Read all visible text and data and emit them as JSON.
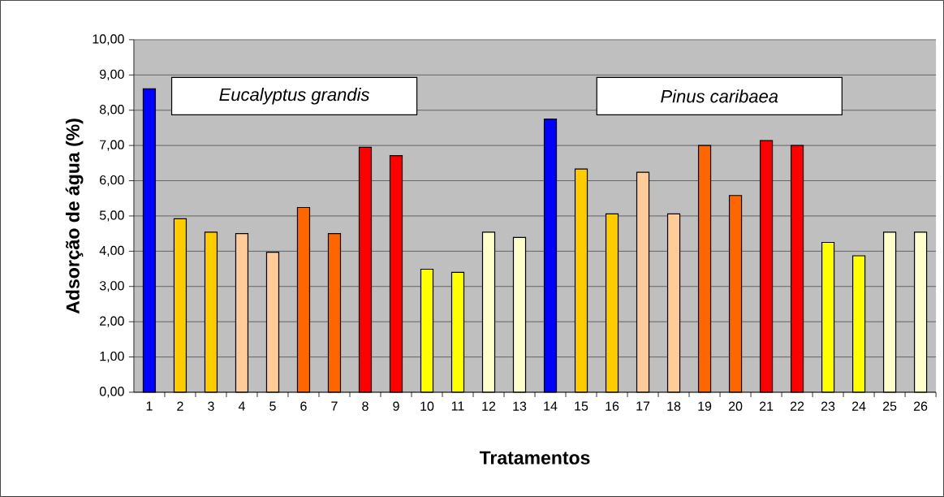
{
  "chart_data": {
    "type": "bar",
    "xlabel": "Tratamentos",
    "ylabel": "Adsorção de água (%)",
    "categories": [
      "1",
      "2",
      "3",
      "4",
      "5",
      "6",
      "7",
      "8",
      "9",
      "10",
      "11",
      "12",
      "13",
      "14",
      "15",
      "16",
      "17",
      "18",
      "19",
      "20",
      "21",
      "22",
      "23",
      "24",
      "25",
      "26"
    ],
    "values": [
      8.61,
      4.92,
      4.54,
      4.5,
      3.97,
      5.24,
      4.5,
      6.95,
      6.71,
      3.49,
      3.4,
      4.54,
      4.39,
      7.75,
      6.33,
      5.06,
      6.24,
      5.06,
      7.0,
      5.58,
      7.14,
      7.0,
      4.25,
      3.87,
      4.54,
      4.54
    ],
    "colors": [
      "#0000ff",
      "#ffcc00",
      "#ffcc00",
      "#ffcc99",
      "#ffcc99",
      "#ff6600",
      "#ff6600",
      "#ff0000",
      "#ff0000",
      "#ffff00",
      "#ffff00",
      "#ffffcc",
      "#ffffcc",
      "#0000ff",
      "#ffcc00",
      "#ffcc00",
      "#ffcc99",
      "#ffcc99",
      "#ff6600",
      "#ff6600",
      "#ff0000",
      "#ff0000",
      "#ffff00",
      "#ffff00",
      "#ffffcc",
      "#ffffcc"
    ],
    "ylim": [
      0,
      10
    ],
    "yticks": [
      {
        "value": 0,
        "label": "0,00"
      },
      {
        "value": 1,
        "label": "1,00"
      },
      {
        "value": 2,
        "label": "2,00"
      },
      {
        "value": 3,
        "label": "3,00"
      },
      {
        "value": 4,
        "label": "4,00"
      },
      {
        "value": 5,
        "label": "5,00"
      },
      {
        "value": 6,
        "label": "6,00"
      },
      {
        "value": 7,
        "label": "7,00"
      },
      {
        "value": 8,
        "label": "8,00"
      },
      {
        "value": 9,
        "label": "9,00"
      },
      {
        "value": 10,
        "label": "10,00"
      }
    ],
    "annotations": [
      "*Eucalyptus grandis*",
      "*Pinus caribaea*"
    ],
    "grid": "y"
  }
}
